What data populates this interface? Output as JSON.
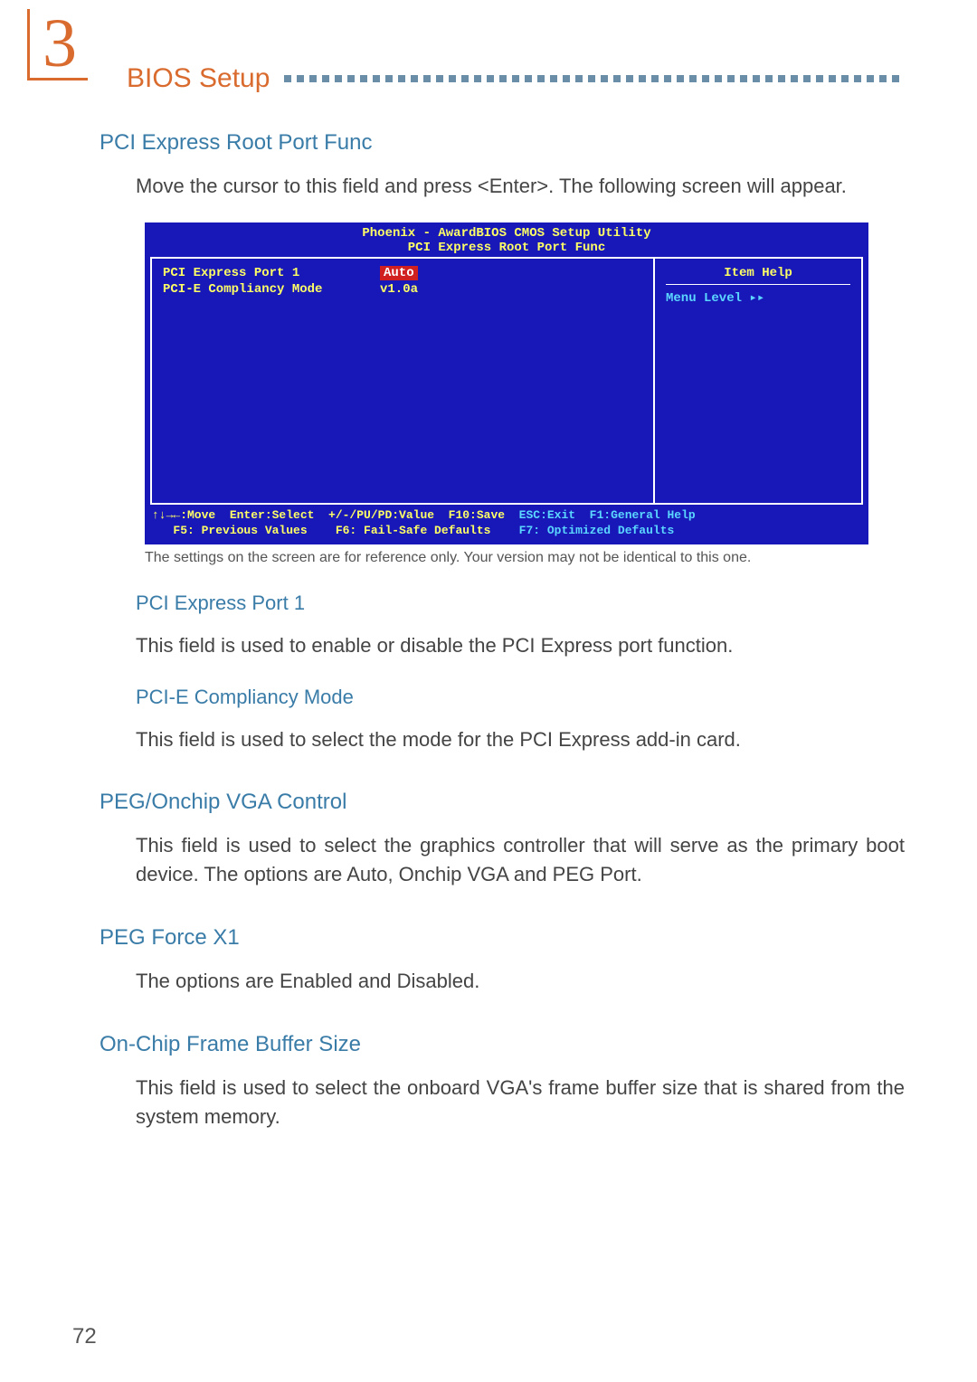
{
  "chapter_number": "3",
  "header_title": "BIOS Setup",
  "sections": {
    "root_port": {
      "heading": "PCI Express Root Port Func",
      "intro": "Move the cursor to this field and press <Enter>. The following screen will appear."
    },
    "port1": {
      "heading": "PCI Express Port 1",
      "body": "This field is used to enable or disable the PCI Express port function."
    },
    "compliancy": {
      "heading": "PCI-E Compliancy Mode",
      "body": "This field is used to select the mode for the PCI Express add-in card."
    },
    "peg_vga": {
      "heading": "PEG/Onchip VGA Control",
      "body": "This field is used to select the graphics controller that will serve as the primary boot device. The options are Auto, Onchip VGA and PEG Port."
    },
    "peg_force": {
      "heading": "PEG Force X1",
      "body": "The options are Enabled and Disabled."
    },
    "buffer": {
      "heading": "On-Chip Frame Buffer Size",
      "body": "This field is used to select the onboard VGA's frame buffer size that is shared from the system memory."
    }
  },
  "bios": {
    "title_line1": "Phoenix - AwardBIOS CMOS Setup Utility",
    "title_line2": "PCI Express Root Port Func",
    "rows": [
      {
        "label": "PCI Express Port 1",
        "value": "Auto",
        "highlighted": true
      },
      {
        "label": "PCI-E Compliancy Mode",
        "value": "v1.0a",
        "highlighted": false
      }
    ],
    "item_help": "Item Help",
    "menu_level": "Menu Level    ▸▸",
    "foot1a": "↑↓→←:Move  Enter:Select  +/-/PU/PD:Value  F10:Save  ",
    "foot1b": "ESC:Exit  F1:General Help",
    "foot2a": "   F5: Previous Values    F6: Fail-Safe Defaults    ",
    "foot2b": "F7: Optimized Defaults"
  },
  "caption": "The settings on the screen are for reference only. Your version may not be identical to this one.",
  "page_number": "72",
  "colors": {
    "orange": "#d96b2f",
    "blue_heading": "#3a7ca8",
    "dot": "#6b8ea8",
    "bios_bg": "#1818b8",
    "bios_yellow": "#ffff66",
    "bios_red": "#d02020",
    "bios_cyan": "#5bd6ff"
  }
}
